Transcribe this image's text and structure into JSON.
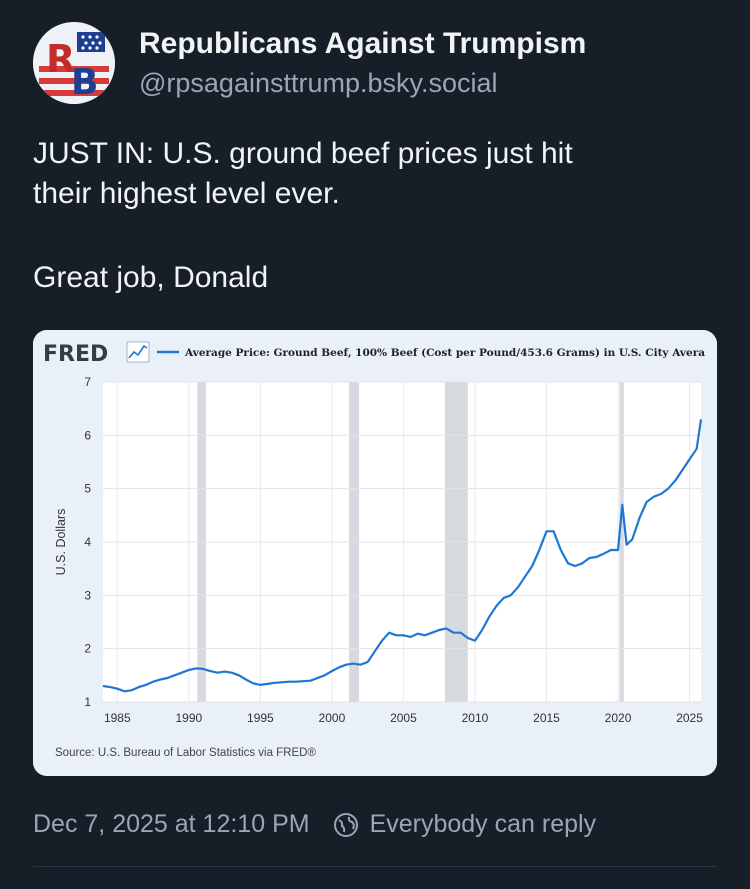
{
  "post": {
    "display_name": "Republicans Against Trumpism",
    "handle": "@rpsagainsttrump.bsky.social",
    "avatar_icon": "rb-flag-logo",
    "avatar_letters": "RB",
    "text_line1": "JUST IN: U.S. ground beef prices just hit",
    "text_line2": "their highest level ever.",
    "text_line3": "Great job, Donald",
    "timestamp": "Dec 7, 2025 at 12:10 PM",
    "reply_setting": "Everybody can reply",
    "reply_icon": "globe-icon"
  },
  "chart_data": {
    "type": "line",
    "brand": "FRED",
    "title": "Average Price: Ground Beef, 100% Beef (Cost per Pound/453.6 Grams) in U.S. City Avera",
    "ylabel": "U.S. Dollars",
    "xlabel": "",
    "source": "Source: U.S. Bureau of Labor Statistics via FRED®",
    "xlim": [
      1984,
      2025.8
    ],
    "ylim": [
      1,
      7
    ],
    "x_ticks": [
      1985,
      1990,
      1995,
      2000,
      2005,
      2010,
      2015,
      2020,
      2025
    ],
    "y_ticks": [
      1,
      2,
      3,
      4,
      5,
      6,
      7
    ],
    "grid": true,
    "line_color": "#1f77d4",
    "recessions": [
      [
        1990.6,
        1991.2
      ],
      [
        2001.2,
        2001.9
      ],
      [
        2007.9,
        2009.5
      ],
      [
        2020.1,
        2020.4
      ]
    ],
    "series": [
      {
        "x": [
          1984.0,
          1984.5,
          1985.0,
          1985.5,
          1986.0,
          1986.5,
          1987.0,
          1987.5,
          1988.0,
          1988.5,
          1989.0,
          1989.5,
          1990.0,
          1990.5,
          1991.0,
          1991.5,
          1992.0,
          1992.5,
          1993.0,
          1993.5,
          1994.0,
          1994.5,
          1995.0,
          1995.5,
          1996.0,
          1996.5,
          1997.0,
          1997.5,
          1998.0,
          1998.5,
          1999.0,
          1999.5,
          2000.0,
          2000.5,
          2001.0,
          2001.5,
          2002.0,
          2002.5,
          2003.0,
          2003.5,
          2004.0,
          2004.5,
          2005.0,
          2005.5,
          2006.0,
          2006.5,
          2007.0,
          2007.5,
          2008.0,
          2008.5,
          2009.0,
          2009.5,
          2010.0,
          2010.5,
          2011.0,
          2011.5,
          2012.0,
          2012.5,
          2013.0,
          2013.5,
          2014.0,
          2014.5,
          2015.0,
          2015.5,
          2016.0,
          2016.5,
          2017.0,
          2017.5,
          2018.0,
          2018.5,
          2019.0,
          2019.5,
          2020.0,
          2020.3,
          2020.6,
          2021.0,
          2021.5,
          2022.0,
          2022.5,
          2023.0,
          2023.5,
          2024.0,
          2024.5,
          2025.0,
          2025.5,
          2025.8
        ],
        "values": [
          1.3,
          1.28,
          1.25,
          1.2,
          1.22,
          1.28,
          1.32,
          1.38,
          1.42,
          1.45,
          1.5,
          1.55,
          1.6,
          1.63,
          1.62,
          1.58,
          1.55,
          1.57,
          1.55,
          1.5,
          1.42,
          1.35,
          1.32,
          1.34,
          1.36,
          1.37,
          1.38,
          1.38,
          1.39,
          1.4,
          1.45,
          1.5,
          1.58,
          1.65,
          1.7,
          1.72,
          1.7,
          1.75,
          1.95,
          2.15,
          2.3,
          2.25,
          2.25,
          2.22,
          2.28,
          2.25,
          2.3,
          2.35,
          2.38,
          2.3,
          2.3,
          2.2,
          2.15,
          2.35,
          2.6,
          2.8,
          2.95,
          3.0,
          3.15,
          3.35,
          3.55,
          3.85,
          4.2,
          4.2,
          3.85,
          3.6,
          3.55,
          3.6,
          3.7,
          3.72,
          3.78,
          3.85,
          3.85,
          4.7,
          3.95,
          4.05,
          4.45,
          4.75,
          4.85,
          4.9,
          5.0,
          5.15,
          5.35,
          5.55,
          5.75,
          6.3
        ]
      }
    ]
  }
}
